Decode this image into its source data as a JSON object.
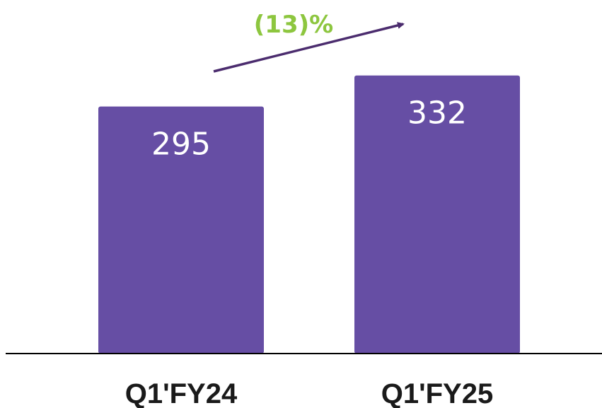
{
  "chart_data": {
    "type": "bar",
    "categories": [
      "Q1'FY24",
      "Q1'FY25"
    ],
    "values": [
      295,
      332
    ],
    "value_labels": [
      "295",
      "332"
    ],
    "annotation": "(13)%",
    "colors": {
      "bar": "#664ea4",
      "arrow": "#4b2c6e",
      "annotation": "#8dc63f",
      "axis": "#000000"
    },
    "grid": false
  }
}
